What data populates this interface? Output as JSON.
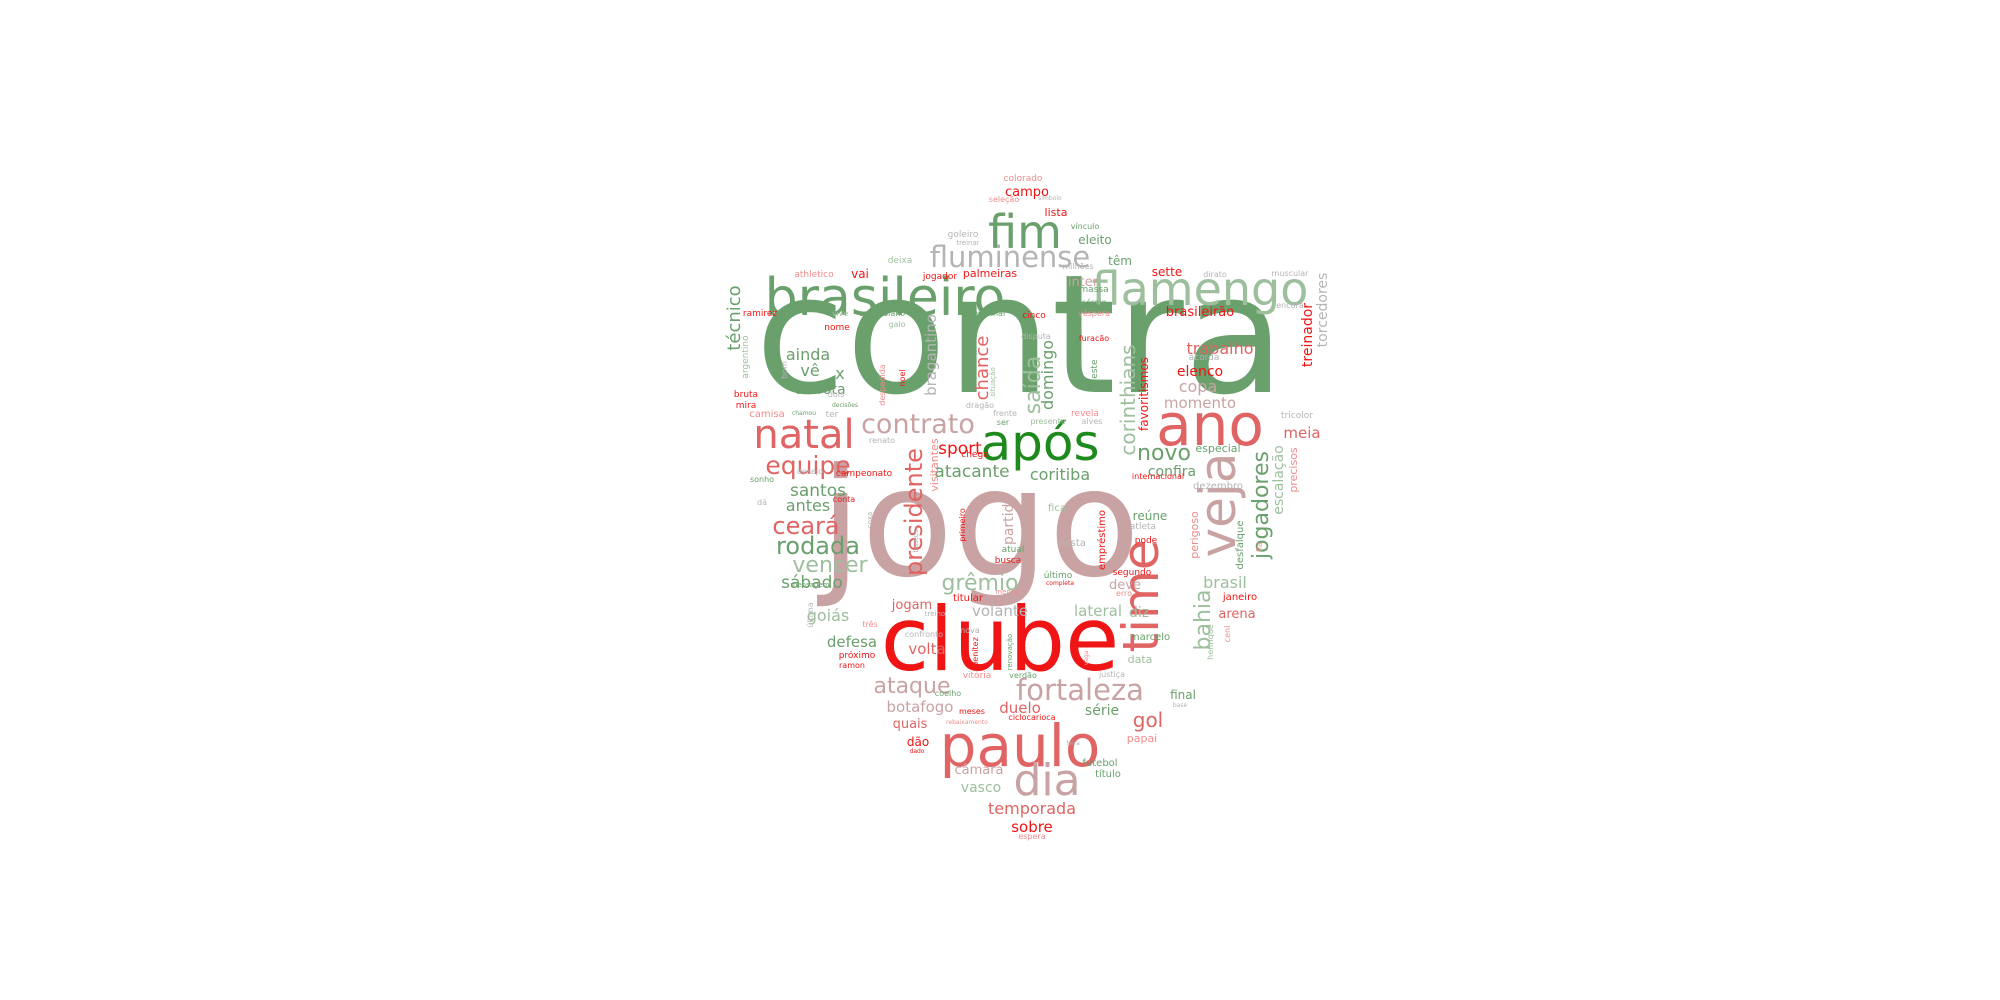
{
  "colors": {
    "green": "#6aa06c",
    "dark_green": "#1e8a1e",
    "light_green": "#9dbf9d",
    "red": "#f01515",
    "coral": "#e06464",
    "pink": "#c9a3a3",
    "light_pink": "#f08c8c",
    "gray": "#b4b4b4"
  },
  "words": [
    {
      "text": "contra",
      "color": "green"
    },
    {
      "text": "jogo",
      "color": "pink"
    },
    {
      "text": "clube",
      "color": "red"
    },
    {
      "text": "paulo",
      "color": "coral"
    },
    {
      "text": "brasileiro",
      "color": "green"
    },
    {
      "text": "flamengo",
      "color": "light_green"
    },
    {
      "text": "fim",
      "color": "green"
    },
    {
      "text": "ano",
      "color": "coral"
    },
    {
      "text": "após",
      "color": "dark_green"
    },
    {
      "text": "natal",
      "color": "coral"
    },
    {
      "text": "veja",
      "color": "pink"
    },
    {
      "text": "time",
      "color": "coral"
    },
    {
      "text": "dia",
      "color": "pink"
    },
    {
      "text": "fluminense",
      "color": "gray"
    },
    {
      "text": "contrato",
      "color": "pink"
    },
    {
      "text": "fortaleza",
      "color": "pink"
    },
    {
      "text": "equipe",
      "color": "coral"
    },
    {
      "text": "ataque",
      "color": "pink"
    },
    {
      "text": "rodada",
      "color": "green"
    },
    {
      "text": "ceará",
      "color": "coral"
    },
    {
      "text": "vencer",
      "color": "light_green"
    },
    {
      "text": "presidente",
      "color": "coral"
    },
    {
      "text": "grêmio",
      "color": "light_green"
    },
    {
      "text": "jogadores",
      "color": "green"
    },
    {
      "text": "bahia",
      "color": "light_green"
    },
    {
      "text": "corinthians",
      "color": "light_green"
    },
    {
      "text": "saída",
      "color": "light_green"
    },
    {
      "text": "novo",
      "color": "green"
    },
    {
      "text": "técnico",
      "color": "green"
    },
    {
      "text": "gol",
      "color": "coral"
    },
    {
      "text": "temporada",
      "color": "coral"
    },
    {
      "text": "santos",
      "color": "green"
    },
    {
      "text": "sábado",
      "color": "green"
    },
    {
      "text": "antes",
      "color": "green"
    },
    {
      "text": "ainda",
      "color": "green"
    },
    {
      "text": "vê",
      "color": "green"
    },
    {
      "text": "x",
      "color": "green"
    },
    {
      "text": "derrota",
      "color": "green"
    },
    {
      "text": "sport",
      "color": "red"
    },
    {
      "text": "atacante",
      "color": "green"
    },
    {
      "text": "coritiba",
      "color": "green"
    },
    {
      "text": "chance",
      "color": "coral"
    },
    {
      "text": "domingo",
      "color": "green"
    },
    {
      "text": "trabalho",
      "color": "coral"
    },
    {
      "text": "elenco",
      "color": "red"
    },
    {
      "text": "copa",
      "color": "pink"
    },
    {
      "text": "momento",
      "color": "pink"
    },
    {
      "text": "confira",
      "color": "green"
    },
    {
      "text": "meia",
      "color": "coral"
    },
    {
      "text": "treinador",
      "color": "red"
    },
    {
      "text": "torcedores",
      "color": "gray"
    },
    {
      "text": "escalação",
      "color": "light_green"
    },
    {
      "text": "brasil",
      "color": "light_green"
    },
    {
      "text": "lateral",
      "color": "light_green"
    },
    {
      "text": "volante",
      "color": "gray"
    },
    {
      "text": "goiás",
      "color": "light_green"
    },
    {
      "text": "defesa",
      "color": "green"
    },
    {
      "text": "volta",
      "color": "coral"
    },
    {
      "text": "botafogo",
      "color": "pink"
    },
    {
      "text": "duelo",
      "color": "coral"
    },
    {
      "text": "série",
      "color": "green"
    },
    {
      "text": "vasco",
      "color": "light_green"
    },
    {
      "text": "câmara",
      "color": "pink"
    },
    {
      "text": "sobre",
      "color": "red"
    },
    {
      "text": "quais",
      "color": "coral"
    },
    {
      "text": "dão",
      "color": "red"
    },
    {
      "text": "final",
      "color": "green"
    },
    {
      "text": "diz",
      "color": "light_green"
    },
    {
      "text": "deve",
      "color": "pink"
    },
    {
      "text": "arena",
      "color": "coral"
    },
    {
      "text": "bragantino",
      "color": "gray"
    },
    {
      "text": "partida",
      "color": "pink"
    },
    {
      "text": "favoritismos",
      "color": "red"
    },
    {
      "text": "brasileirão",
      "color": "red"
    },
    {
      "text": "inter",
      "color": "pink"
    },
    {
      "text": "têm",
      "color": "green"
    },
    {
      "text": "eleito",
      "color": "green"
    },
    {
      "text": "campo",
      "color": "red"
    },
    {
      "text": "lista",
      "color": "red"
    },
    {
      "text": "sette",
      "color": "red"
    },
    {
      "text": "vai",
      "color": "red"
    },
    {
      "text": "palmeiras",
      "color": "red"
    },
    {
      "text": "jogador",
      "color": "red"
    },
    {
      "text": "jogam",
      "color": "coral"
    },
    {
      "text": "titular",
      "color": "red"
    },
    {
      "text": "reúne",
      "color": "green"
    },
    {
      "text": "especial",
      "color": "green"
    },
    {
      "text": "empréstimo",
      "color": "red"
    },
    {
      "text": "perigoso",
      "color": "light_pink"
    },
    {
      "text": "desfalque",
      "color": "green"
    },
    {
      "text": "precisos",
      "color": "light_pink"
    },
    {
      "text": "janeiro",
      "color": "red"
    },
    {
      "text": "dezembro",
      "color": "gray"
    },
    {
      "text": "marcelo",
      "color": "green"
    },
    {
      "text": "data",
      "color": "light_green"
    },
    {
      "text": "papai",
      "color": "light_pink"
    },
    {
      "text": "futebol",
      "color": "green"
    },
    {
      "text": "título",
      "color": "green"
    },
    {
      "text": "espera",
      "color": "light_pink"
    },
    {
      "text": "visitantes",
      "color": "light_pink"
    },
    {
      "text": "camisa",
      "color": "light_pink"
    },
    {
      "text": "bruta",
      "color": "red"
    },
    {
      "text": "mira",
      "color": "red"
    },
    {
      "text": "ramirez",
      "color": "red"
    },
    {
      "text": "argentino",
      "color": "light_green"
    },
    {
      "text": "nome",
      "color": "red"
    },
    {
      "text": "vive",
      "color": "light_green"
    },
    {
      "text": "colombiano",
      "color": "green"
    },
    {
      "text": "athletico",
      "color": "light_pink"
    },
    {
      "text": "deixa",
      "color": "light_green"
    },
    {
      "text": "goleiro",
      "color": "gray"
    },
    {
      "text": "treinar",
      "color": "gray"
    },
    {
      "text": "colorado",
      "color": "light_pink"
    },
    {
      "text": "seleção",
      "color": "light_pink"
    },
    {
      "text": "símbolo",
      "color": "gray"
    },
    {
      "text": "vínculo",
      "color": "green"
    },
    {
      "text": "milhões",
      "color": "gray"
    },
    {
      "text": "dirato",
      "color": "gray"
    },
    {
      "text": "muscular",
      "color": "gray"
    },
    {
      "text": "encora",
      "color": "gray"
    },
    {
      "text": "massa",
      "color": "green"
    },
    {
      "text": "sérgio",
      "color": "green"
    },
    {
      "text": "véspera",
      "color": "light_pink"
    },
    {
      "text": "semifinal",
      "color": "green"
    },
    {
      "text": "cinco",
      "color": "red"
    },
    {
      "text": "galo",
      "color": "light_green"
    },
    {
      "text": "disputa",
      "color": "gray"
    },
    {
      "text": "furacão",
      "color": "red"
    },
    {
      "text": "quatro",
      "color": "green"
    },
    {
      "text": "neste",
      "color": "green"
    },
    {
      "text": "acorda",
      "color": "gray"
    },
    {
      "text": "tricolor",
      "color": "gray"
    },
    {
      "text": "revela",
      "color": "light_pink"
    },
    {
      "text": "alves",
      "color": "gray"
    },
    {
      "text": "presente",
      "color": "light_green"
    },
    {
      "text": "frente",
      "color": "gray"
    },
    {
      "text": "ser",
      "color": "green"
    },
    {
      "text": "dragão",
      "color": "gray"
    },
    {
      "text": "chega",
      "color": "red"
    },
    {
      "text": "internacional",
      "color": "red"
    },
    {
      "text": "fica",
      "color": "light_green"
    },
    {
      "text": "atleta",
      "color": "gray"
    },
    {
      "text": "pode",
      "color": "red"
    },
    {
      "text": "nesta",
      "color": "gray"
    },
    {
      "text": "segundo",
      "color": "red"
    },
    {
      "text": "erro",
      "color": "light_pink"
    },
    {
      "text": "atual",
      "color": "green"
    },
    {
      "text": "busca",
      "color": "red"
    },
    {
      "text": "último",
      "color": "green"
    },
    {
      "text": "completa",
      "color": "red"
    },
    {
      "text": "menos",
      "color": "light_pink"
    },
    {
      "text": "primeiro",
      "color": "red"
    },
    {
      "text": "renato",
      "color": "gray"
    },
    {
      "text": "campeonato",
      "color": "red"
    },
    {
      "text": "desejo",
      "color": "gray"
    },
    {
      "text": "sonho",
      "color": "green"
    },
    {
      "text": "conta",
      "color": "red"
    },
    {
      "text": "dá",
      "color": "gray"
    },
    {
      "text": "mensagem",
      "color": "green"
    },
    {
      "text": "última",
      "color": "gray"
    },
    {
      "text": "três",
      "color": "light_pink"
    },
    {
      "text": "próximo",
      "color": "red"
    },
    {
      "text": "ramon",
      "color": "red"
    },
    {
      "text": "confronto",
      "color": "gray"
    },
    {
      "text": "nova",
      "color": "gray"
    },
    {
      "text": "benítez",
      "color": "red"
    },
    {
      "text": "vitória",
      "color": "light_pink"
    },
    {
      "text": "verdão",
      "color": "green"
    },
    {
      "text": "coelho",
      "color": "green"
    },
    {
      "text": "meses",
      "color": "red"
    },
    {
      "text": "ciclocarioca",
      "color": "red"
    },
    {
      "text": "justiça",
      "color": "gray"
    },
    {
      "text": "base",
      "color": "gray"
    },
    {
      "text": "henrique",
      "color": "light_green"
    },
    {
      "text": "ceni",
      "color": "light_pink"
    },
    {
      "text": "fla",
      "color": "light_pink"
    },
    {
      "text": "despedida",
      "color": "light_pink"
    },
    {
      "text": "noel",
      "color": "red"
    },
    {
      "text": "situação",
      "color": "light_green"
    },
    {
      "text": "decisões",
      "color": "green"
    },
    {
      "text": "chamou",
      "color": "green"
    },
    {
      "text": "dois",
      "color": "gray"
    },
    {
      "text": "ter",
      "color": "gray"
    },
    {
      "text": "bom",
      "color": "gray"
    },
    {
      "text": "coxa",
      "color": "gray"
    },
    {
      "text": "bastos",
      "color": "gray"
    },
    {
      "text": "treino",
      "color": "gray"
    },
    {
      "text": "renovação",
      "color": "green"
    },
    {
      "text": "ressaca",
      "color": "gray"
    },
    {
      "text": "dado",
      "color": "red"
    },
    {
      "text": "rebaixamento",
      "color": "light_pink"
    },
    {
      "text": "feira",
      "color": "gray"
    },
    {
      "text": "vaga",
      "color": "light_pink"
    }
  ]
}
